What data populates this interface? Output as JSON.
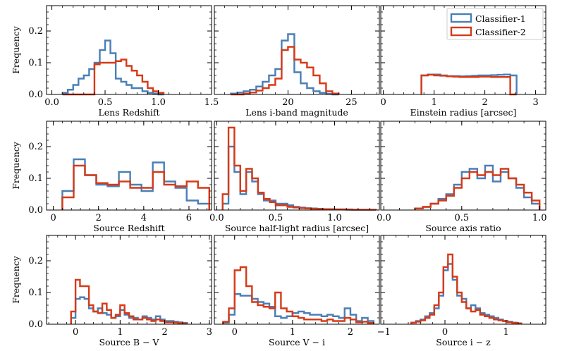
{
  "figure": {
    "legend": [
      {
        "label": "Classifier-1",
        "color": "#4a7fb5"
      },
      {
        "label": "Classifier-2",
        "color": "#d63a18"
      }
    ],
    "legend_position": "top-right of top-right panel"
  },
  "chart_data": [
    {
      "type": "histogram",
      "xlabel": "Lens Redshift",
      "ylabel": "Frequency",
      "xlim": [
        -0.05,
        1.5
      ],
      "ylim": [
        0,
        0.28
      ],
      "xticks": [
        0.0,
        0.5,
        1.0,
        1.5
      ],
      "xtick_labels": [
        "0.0",
        "0.5",
        "1.0",
        "1.5"
      ],
      "yticks": [
        0.0,
        0.1,
        0.2
      ],
      "ytick_labels": [
        "0.0",
        "0.1",
        "0.2"
      ],
      "edges": [
        0.1,
        0.15,
        0.2,
        0.25,
        0.3,
        0.35,
        0.4,
        0.45,
        0.5,
        0.55,
        0.6,
        0.65,
        0.7,
        0.75,
        0.8,
        0.85,
        0.9,
        0.95,
        1.0,
        1.05
      ],
      "series": [
        {
          "name": "Classifier-1",
          "values": [
            0.005,
            0.015,
            0.03,
            0.05,
            0.06,
            0.08,
            0.1,
            0.14,
            0.17,
            0.13,
            0.05,
            0.04,
            0.03,
            0.02,
            0.02,
            0.01,
            0.005,
            0.003,
            0.0
          ]
        },
        {
          "name": "Classifier-2",
          "values": [
            0.0,
            0.0,
            0.0,
            0.0,
            0.0,
            0.0,
            0.095,
            0.1,
            0.1,
            0.1,
            0.105,
            0.11,
            0.09,
            0.075,
            0.06,
            0.04,
            0.02,
            0.01,
            0.005
          ]
        }
      ]
    },
    {
      "type": "histogram",
      "xlabel": "Lens i-band magnitude",
      "ylabel": "",
      "xlim": [
        14.2,
        27.2
      ],
      "ylim": [
        0,
        0.28
      ],
      "xticks": [
        20,
        25
      ],
      "xtick_labels": [
        "20",
        "25"
      ],
      "yticks": [
        0.0,
        0.1,
        0.2
      ],
      "ytick_labels": [
        "",
        "",
        ""
      ],
      "edges": [
        15.5,
        16,
        16.5,
        17,
        17.5,
        18,
        18.5,
        19,
        19.5,
        20,
        20.5,
        21,
        21.5,
        22,
        22.5,
        23,
        23.5,
        24
      ],
      "series": [
        {
          "name": "Classifier-1",
          "values": [
            0.003,
            0.006,
            0.01,
            0.015,
            0.025,
            0.04,
            0.06,
            0.08,
            0.17,
            0.19,
            0.07,
            0.035,
            0.02,
            0.01,
            0.005,
            0.002,
            0.0
          ]
        },
        {
          "name": "Classifier-2",
          "values": [
            0.0,
            0.0,
            0.003,
            0.006,
            0.012,
            0.02,
            0.03,
            0.05,
            0.14,
            0.15,
            0.11,
            0.1,
            0.085,
            0.06,
            0.035,
            0.01,
            0.003
          ]
        }
      ]
    },
    {
      "type": "histogram",
      "xlabel": "Einstein radius [arcsec]",
      "ylabel": "",
      "xlim": [
        -0.05,
        3.2
      ],
      "ylim": [
        0,
        0.28
      ],
      "xticks": [
        0,
        1,
        2,
        3
      ],
      "xtick_labels": [
        "0",
        "1",
        "2",
        "3"
      ],
      "yticks": [
        0.0,
        0.1,
        0.2
      ],
      "ytick_labels": [
        "",
        "",
        ""
      ],
      "edges": [
        0.75,
        0.875,
        1.0,
        1.125,
        1.25,
        1.375,
        1.5,
        1.625,
        1.75,
        1.875,
        2.0,
        2.125,
        2.25,
        2.375,
        2.5,
        2.625
      ],
      "series": [
        {
          "name": "Classifier-1",
          "values": [
            0.06,
            0.063,
            0.063,
            0.06,
            0.058,
            0.058,
            0.057,
            0.058,
            0.059,
            0.06,
            0.06,
            0.061,
            0.062,
            0.063,
            0.06
          ]
        },
        {
          "name": "Classifier-2",
          "values": [
            0.06,
            0.062,
            0.06,
            0.059,
            0.057,
            0.056,
            0.055,
            0.055,
            0.055,
            0.056,
            0.056,
            0.055,
            0.055,
            0.055,
            0.0
          ]
        }
      ]
    },
    {
      "type": "histogram",
      "xlabel": "Source Redshift",
      "ylabel": "Frequency",
      "xlim": [
        -0.3,
        7.0
      ],
      "ylim": [
        0,
        0.28
      ],
      "xticks": [
        0,
        2,
        4,
        6
      ],
      "xtick_labels": [
        "0",
        "2",
        "4",
        "6"
      ],
      "yticks": [
        0.0,
        0.1,
        0.2
      ],
      "ytick_labels": [
        "0.0",
        "0.1",
        "0.2"
      ],
      "edges": [
        0.4,
        0.9,
        1.4,
        1.9,
        2.4,
        2.9,
        3.4,
        3.9,
        4.4,
        4.9,
        5.4,
        5.9,
        6.4,
        6.9
      ],
      "series": [
        {
          "name": "Classifier-1",
          "values": [
            0.06,
            0.16,
            0.11,
            0.08,
            0.075,
            0.12,
            0.08,
            0.06,
            0.15,
            0.09,
            0.07,
            0.03,
            0.02
          ]
        },
        {
          "name": "Classifier-2",
          "values": [
            0.04,
            0.14,
            0.11,
            0.085,
            0.08,
            0.09,
            0.07,
            0.07,
            0.12,
            0.08,
            0.075,
            0.09,
            0.07
          ]
        }
      ]
    },
    {
      "type": "histogram",
      "xlabel": "Source half-light radius [arcsec]",
      "ylabel": "",
      "xlim": [
        -0.02,
        1.38
      ],
      "ylim": [
        0,
        0.28
      ],
      "xticks": [
        0.0,
        0.5,
        1.0
      ],
      "xtick_labels": [
        "0.0",
        "0.5",
        "1.0"
      ],
      "yticks": [
        0.0,
        0.1,
        0.2
      ],
      "ytick_labels": [
        "",
        "",
        ""
      ],
      "edges": [
        0.05,
        0.1,
        0.15,
        0.2,
        0.25,
        0.3,
        0.35,
        0.4,
        0.45,
        0.5,
        0.55,
        0.6,
        0.65,
        0.7,
        0.75,
        0.8,
        0.85,
        0.9,
        0.95,
        1.0,
        1.05,
        1.1,
        1.15,
        1.2,
        1.25,
        1.3,
        1.35
      ],
      "series": [
        {
          "name": "Classifier-1",
          "values": [
            0.02,
            0.2,
            0.12,
            0.05,
            0.12,
            0.09,
            0.05,
            0.03,
            0.03,
            0.02,
            0.02,
            0.015,
            0.01,
            0.008,
            0.006,
            0.005,
            0.004,
            0.003,
            0.003,
            0.002,
            0.002,
            0.002,
            0.001,
            0.001,
            0.001,
            0.001
          ]
        },
        {
          "name": "Classifier-2",
          "values": [
            0.05,
            0.26,
            0.14,
            0.06,
            0.13,
            0.1,
            0.055,
            0.035,
            0.025,
            0.015,
            0.015,
            0.01,
            0.008,
            0.006,
            0.005,
            0.004,
            0.003,
            0.003,
            0.002,
            0.002,
            0.002,
            0.001,
            0.001,
            0.001,
            0.001,
            0.001
          ]
        }
      ]
    },
    {
      "type": "histogram",
      "xlabel": "Source axis ratio",
      "ylabel": "",
      "xlim": [
        -0.02,
        1.04
      ],
      "ylim": [
        0,
        0.28
      ],
      "xticks": [
        0.0,
        0.5,
        1.0
      ],
      "xtick_labels": [
        "0.0",
        "0.5",
        "1.0"
      ],
      "yticks": [
        0.0,
        0.1,
        0.2
      ],
      "ytick_labels": [
        "",
        "",
        ""
      ],
      "edges": [
        0.2,
        0.25,
        0.3,
        0.35,
        0.4,
        0.45,
        0.5,
        0.55,
        0.6,
        0.65,
        0.7,
        0.75,
        0.8,
        0.85,
        0.9,
        0.95,
        1.0
      ],
      "series": [
        {
          "name": "Classifier-1",
          "values": [
            0.005,
            0.01,
            0.02,
            0.035,
            0.05,
            0.08,
            0.12,
            0.13,
            0.1,
            0.14,
            0.09,
            0.12,
            0.1,
            0.07,
            0.04,
            0.02
          ]
        },
        {
          "name": "Classifier-2",
          "values": [
            0.005,
            0.01,
            0.02,
            0.03,
            0.045,
            0.07,
            0.1,
            0.12,
            0.11,
            0.12,
            0.11,
            0.13,
            0.1,
            0.08,
            0.055,
            0.03
          ]
        }
      ]
    },
    {
      "type": "histogram",
      "xlabel": "Source B − V",
      "ylabel": "Frequency",
      "xlim": [
        -0.65,
        3.05
      ],
      "ylim": [
        0,
        0.28
      ],
      "xticks": [
        0,
        1,
        2,
        3
      ],
      "xtick_labels": [
        "0",
        "1",
        "2",
        "3"
      ],
      "yticks": [
        0.0,
        0.1,
        0.2
      ],
      "ytick_labels": [
        "0.0",
        "0.1",
        "0.2"
      ],
      "edges": [
        -0.1,
        0.0,
        0.1,
        0.2,
        0.3,
        0.4,
        0.5,
        0.6,
        0.7,
        0.8,
        0.9,
        1.0,
        1.1,
        1.2,
        1.3,
        1.4,
        1.5,
        1.6,
        1.7,
        1.8,
        1.9,
        2.0,
        2.1,
        2.2,
        2.3,
        2.4,
        2.5
      ],
      "series": [
        {
          "name": "Classifier-1",
          "values": [
            0.02,
            0.08,
            0.085,
            0.08,
            0.05,
            0.04,
            0.05,
            0.035,
            0.03,
            0.02,
            0.025,
            0.045,
            0.03,
            0.02,
            0.02,
            0.015,
            0.025,
            0.02,
            0.015,
            0.025,
            0.015,
            0.01,
            0.01,
            0.008,
            0.006,
            0.004
          ]
        },
        {
          "name": "Classifier-2",
          "values": [
            0.04,
            0.14,
            0.12,
            0.12,
            0.06,
            0.04,
            0.035,
            0.065,
            0.045,
            0.02,
            0.03,
            0.06,
            0.035,
            0.025,
            0.015,
            0.015,
            0.02,
            0.015,
            0.01,
            0.015,
            0.01,
            0.006,
            0.006,
            0.005,
            0.003,
            0.002
          ]
        }
      ]
    },
    {
      "type": "histogram",
      "xlabel": "Source V − i",
      "ylabel": "",
      "xlim": [
        -0.35,
        2.5
      ],
      "ylim": [
        0,
        0.28
      ],
      "xticks": [
        0,
        1,
        2
      ],
      "xtick_labels": [
        "0",
        "1",
        "2"
      ],
      "yticks": [
        0.0,
        0.1,
        0.2
      ],
      "ytick_labels": [
        "",
        "",
        ""
      ],
      "edges": [
        -0.2,
        -0.1,
        0.0,
        0.1,
        0.2,
        0.3,
        0.4,
        0.5,
        0.6,
        0.7,
        0.8,
        0.9,
        1.0,
        1.1,
        1.2,
        1.3,
        1.4,
        1.5,
        1.6,
        1.7,
        1.8,
        1.9,
        2.0,
        2.1,
        2.2,
        2.3,
        2.4
      ],
      "series": [
        {
          "name": "Classifier-1",
          "values": [
            0.005,
            0.03,
            0.095,
            0.09,
            0.09,
            0.08,
            0.07,
            0.065,
            0.055,
            0.025,
            0.02,
            0.025,
            0.035,
            0.04,
            0.035,
            0.03,
            0.03,
            0.025,
            0.03,
            0.025,
            0.02,
            0.05,
            0.03,
            0.01,
            0.02,
            0.01
          ]
        },
        {
          "name": "Classifier-2",
          "values": [
            0.008,
            0.05,
            0.17,
            0.18,
            0.12,
            0.07,
            0.06,
            0.055,
            0.05,
            0.1,
            0.05,
            0.04,
            0.025,
            0.02,
            0.015,
            0.015,
            0.015,
            0.01,
            0.015,
            0.01,
            0.01,
            0.02,
            0.015,
            0.006,
            0.008,
            0.004
          ]
        }
      ]
    },
    {
      "type": "histogram",
      "xlabel": "Source i − z",
      "ylabel": "",
      "xlim": [
        -1.05,
        1.65
      ],
      "ylim": [
        0,
        0.28
      ],
      "xticks": [
        -1,
        0,
        1
      ],
      "xtick_labels": [
        "−1",
        "0",
        "1"
      ],
      "yticks": [
        0.0,
        0.1,
        0.2
      ],
      "ytick_labels": [
        "",
        "",
        ""
      ],
      "edges": [
        -0.55,
        -0.475,
        -0.4,
        -0.325,
        -0.25,
        -0.175,
        -0.1,
        -0.025,
        0.05,
        0.125,
        0.2,
        0.275,
        0.35,
        0.425,
        0.5,
        0.575,
        0.65,
        0.725,
        0.8,
        0.875,
        0.95,
        1.025,
        1.1,
        1.175,
        1.25
      ],
      "series": [
        {
          "name": "Classifier-1",
          "values": [
            0.005,
            0.01,
            0.015,
            0.025,
            0.035,
            0.05,
            0.09,
            0.17,
            0.19,
            0.14,
            0.09,
            0.08,
            0.05,
            0.06,
            0.05,
            0.035,
            0.03,
            0.025,
            0.02,
            0.015,
            0.01,
            0.008,
            0.005,
            0.003
          ]
        },
        {
          "name": "Classifier-2",
          "values": [
            0.005,
            0.008,
            0.012,
            0.02,
            0.03,
            0.06,
            0.1,
            0.18,
            0.22,
            0.15,
            0.1,
            0.07,
            0.05,
            0.04,
            0.045,
            0.03,
            0.025,
            0.02,
            0.015,
            0.012,
            0.01,
            0.006,
            0.004,
            0.002
          ]
        }
      ]
    }
  ]
}
